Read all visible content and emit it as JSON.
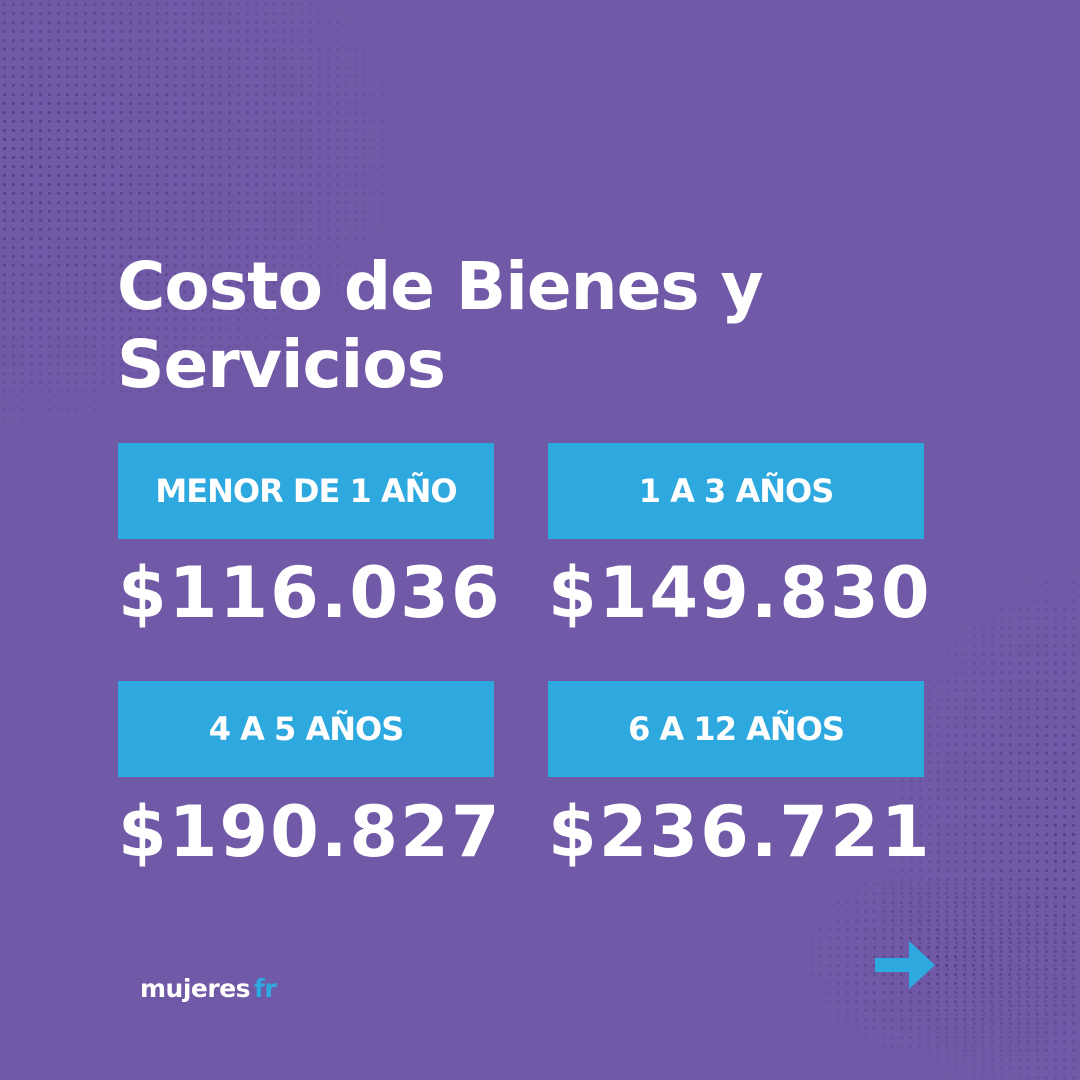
{
  "colors": {
    "background": "#7059a6",
    "accent": "#2ea9e0",
    "text": "#ffffff"
  },
  "title": {
    "line1": "Costo de Bienes y",
    "line2": "Servicios"
  },
  "groups": [
    {
      "label": "MENOR DE 1 AÑO",
      "price": "$116.036"
    },
    {
      "label": "1 A 3 AÑOS",
      "price": "$149.830"
    },
    {
      "label": "4 A 5 AÑOS",
      "price": "$190.827"
    },
    {
      "label": "6 A 12 AÑOS",
      "price": "$236.721"
    }
  ],
  "logo": {
    "part1": "mujeres",
    "part2": "fr"
  },
  "next_icon": "arrow-right-icon"
}
